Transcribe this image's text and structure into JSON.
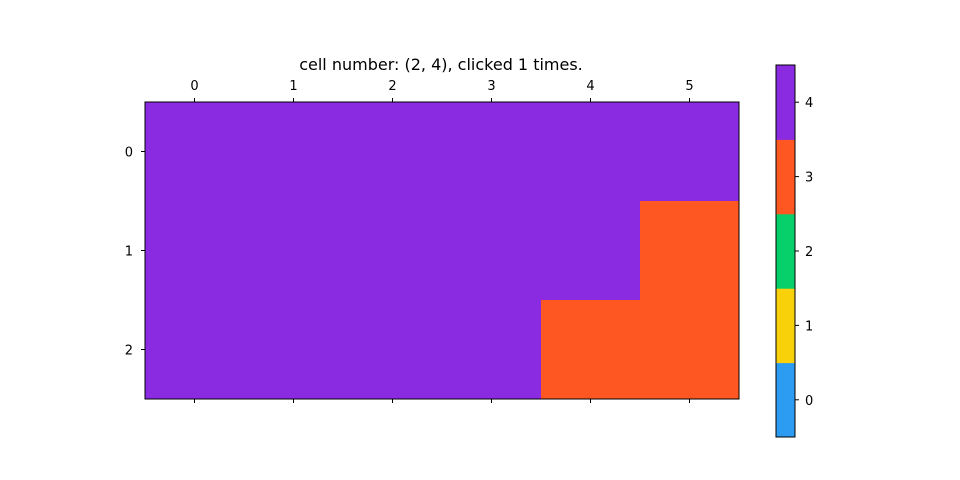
{
  "title": "cell number: (2, 4), clicked 1 times.",
  "grid": {
    "rows": 3,
    "cols": 6,
    "col_tick_labels": [
      "0",
      "1",
      "2",
      "3",
      "4",
      "5"
    ],
    "row_tick_labels": [
      "0",
      "1",
      "2"
    ],
    "values": [
      [
        4,
        4,
        4,
        4,
        4,
        4
      ],
      [
        4,
        4,
        4,
        4,
        4,
        3
      ],
      [
        4,
        4,
        4,
        4,
        3,
        3
      ]
    ]
  },
  "colorbar": {
    "levels": [
      0,
      1,
      2,
      3,
      4
    ],
    "tick_labels": [
      "0",
      "1",
      "2",
      "3",
      "4"
    ],
    "colors": [
      "#2b9cf2",
      "#f8d10a",
      "#07cf6a",
      "#ff5722",
      "#8a2be2"
    ]
  }
}
